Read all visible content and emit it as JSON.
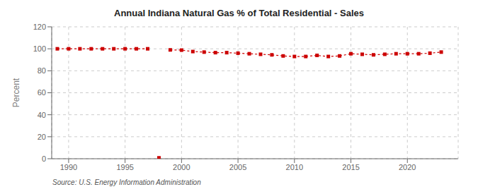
{
  "chart_data": {
    "type": "line",
    "title": "Annual Indiana Natural Gas % of Total Residential - Sales",
    "ylabel": "Percent",
    "annotations": [
      "Source: U.S. Energy Information Administration"
    ],
    "x": [
      1989,
      1990,
      1991,
      1992,
      1993,
      1994,
      1995,
      1996,
      1997,
      1998,
      1999,
      2000,
      2001,
      2002,
      2003,
      2004,
      2005,
      2006,
      2007,
      2008,
      2009,
      2010,
      2011,
      2012,
      2013,
      2014,
      2015,
      2016,
      2017,
      2018,
      2019,
      2020,
      2021,
      2022,
      2023
    ],
    "series": [
      {
        "type": "line",
        "color": "#cc0000",
        "marker": "square",
        "line_style": "dashed",
        "values": [
          100.0,
          100.0,
          100.0,
          100.0,
          100.0,
          100.0,
          100.0,
          100.0,
          100.0,
          null,
          99.0,
          98.8,
          97.5,
          97.0,
          96.5,
          96.5,
          96.0,
          95.5,
          95.0,
          94.5,
          93.5,
          93.0,
          93.0,
          94.0,
          93.0,
          93.5,
          95.5,
          95.0,
          94.5,
          95.0,
          95.5,
          95.5,
          95.5,
          96.0,
          97.0
        ]
      },
      {
        "type": "scatter",
        "color": "#cc0000",
        "marker": "square",
        "values": [
          null,
          null,
          null,
          null,
          null,
          null,
          null,
          null,
          null,
          0.8,
          null,
          null,
          null,
          null,
          null,
          null,
          null,
          null,
          null,
          null,
          null,
          null,
          null,
          null,
          null,
          null,
          null,
          null,
          null,
          null,
          null,
          null,
          null,
          null,
          null
        ]
      }
    ],
    "xlim": [
      1988.5,
      2024.5
    ],
    "xticks": [
      1990,
      1995,
      2000,
      2005,
      2010,
      2015,
      2020
    ],
    "ylim": [
      0,
      120
    ],
    "yticks": [
      0,
      20,
      40,
      60,
      80,
      100,
      120
    ],
    "grid": true
  }
}
